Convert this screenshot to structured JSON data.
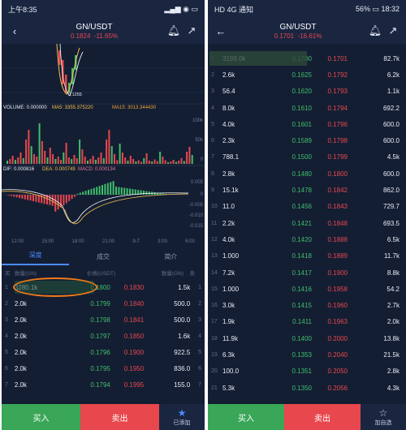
{
  "left": {
    "status_time": "上午8:35",
    "status_right": "WiFi · 电池",
    "pair": "GN/USDT",
    "price": "0.1824",
    "change": "-11.65%",
    "chart": {
      "low_label": "0.1255",
      "volume_label": "VOLUME: 0.000000",
      "ma5_label": "MA5: 3355.375220",
      "ma15_label": "MA15: 3013.344430",
      "dif_label": "DIF: 0.000816",
      "dea_label": "DEA: 0.000749",
      "macd_label": "MACD: 0.000134",
      "vol_axis": [
        "100k",
        "50k",
        "0"
      ],
      "macd_axis": [
        "0.005",
        "0",
        "-0.005",
        "-0.010",
        "-0.015"
      ],
      "time_axis": [
        "12:00",
        "15:00",
        "18:00",
        "21:00",
        "9-7",
        "3:00",
        "6:00"
      ]
    },
    "tabs": [
      "深度",
      "成交",
      "简介"
    ],
    "col_headers": {
      "left_side": "买",
      "qty": "数量(GN)",
      "price": "价格(USDT)",
      "qty2": "数量(GN)",
      "right_side": "卖"
    },
    "rows": [
      {
        "n": "1",
        "bid_qty": "3280.1k",
        "bid": "0.1800",
        "ask": "0.1830",
        "ask_qty": "1.5k",
        "n2": "1"
      },
      {
        "n": "2",
        "bid_qty": "2.0k",
        "bid": "0.1799",
        "ask": "0.1840",
        "ask_qty": "500.0",
        "n2": "2"
      },
      {
        "n": "3",
        "bid_qty": "2.0k",
        "bid": "0.1798",
        "ask": "0.1841",
        "ask_qty": "500.0",
        "n2": "3"
      },
      {
        "n": "4",
        "bid_qty": "2.0k",
        "bid": "0.1797",
        "ask": "0.1850",
        "ask_qty": "1.6k",
        "n2": "4"
      },
      {
        "n": "5",
        "bid_qty": "2.0k",
        "bid": "0.1796",
        "ask": "0.1900",
        "ask_qty": "922.5",
        "n2": "5"
      },
      {
        "n": "6",
        "bid_qty": "2.0k",
        "bid": "0.1795",
        "ask": "0.1950",
        "ask_qty": "836.0",
        "n2": "6"
      },
      {
        "n": "7",
        "bid_qty": "2.0k",
        "bid": "0.1794",
        "ask": "0.1995",
        "ask_qty": "155.0",
        "n2": "7"
      }
    ],
    "buy_label": "买入",
    "sell_label": "卖出",
    "fav_label": "已添加"
  },
  "right": {
    "status_left": "HD 4G 通知",
    "status_battery": "56%",
    "status_time": "18:32",
    "pair": "GN/USDT",
    "price": "0.1701",
    "change": "-16.61%",
    "rows": [
      {
        "n": "1",
        "bid_qty": "3199.0k",
        "bid": "0.1700",
        "ask": "0.1701",
        "ask_qty": "82.7k"
      },
      {
        "n": "2",
        "bid_qty": "2.6k",
        "bid": "0.1625",
        "ask": "0.1792",
        "ask_qty": "6.2k"
      },
      {
        "n": "3",
        "bid_qty": "56.4",
        "bid": "0.1620",
        "ask": "0.1793",
        "ask_qty": "1.1k"
      },
      {
        "n": "4",
        "bid_qty": "8.0k",
        "bid": "0.1610",
        "ask": "0.1794",
        "ask_qty": "692.2"
      },
      {
        "n": "5",
        "bid_qty": "4.0k",
        "bid": "0.1601",
        "ask": "0.1796",
        "ask_qty": "600.0"
      },
      {
        "n": "6",
        "bid_qty": "2.3k",
        "bid": "0.1589",
        "ask": "0.1798",
        "ask_qty": "600.0"
      },
      {
        "n": "7",
        "bid_qty": "788.1",
        "bid": "0.1500",
        "ask": "0.1799",
        "ask_qty": "4.5k"
      },
      {
        "n": "8",
        "bid_qty": "2.8k",
        "bid": "0.1480",
        "ask": "0.1800",
        "ask_qty": "600.0"
      },
      {
        "n": "9",
        "bid_qty": "15.1k",
        "bid": "0.1478",
        "ask": "0.1842",
        "ask_qty": "862.0"
      },
      {
        "n": "10",
        "bid_qty": "11.0",
        "bid": "0.1456",
        "ask": "0.1843",
        "ask_qty": "729.7"
      },
      {
        "n": "11",
        "bid_qty": "2.2k",
        "bid": "0.1421",
        "ask": "0.1848",
        "ask_qty": "693.5"
      },
      {
        "n": "12",
        "bid_qty": "4.0k",
        "bid": "0.1420",
        "ask": "0.1888",
        "ask_qty": "6.5k"
      },
      {
        "n": "13",
        "bid_qty": "1.000",
        "bid": "0.1418",
        "ask": "0.1889",
        "ask_qty": "11.7k"
      },
      {
        "n": "14",
        "bid_qty": "7.2k",
        "bid": "0.1417",
        "ask": "0.1900",
        "ask_qty": "8.8k"
      },
      {
        "n": "15",
        "bid_qty": "1.000",
        "bid": "0.1416",
        "ask": "0.1958",
        "ask_qty": "54.2"
      },
      {
        "n": "16",
        "bid_qty": "3.0k",
        "bid": "0.1415",
        "ask": "0.1960",
        "ask_qty": "2.7k"
      },
      {
        "n": "17",
        "bid_qty": "1.9k",
        "bid": "0.1411",
        "ask": "0.1963",
        "ask_qty": "2.0k"
      },
      {
        "n": "18",
        "bid_qty": "11.9k",
        "bid": "0.1400",
        "ask": "0.2000",
        "ask_qty": "13.8k"
      },
      {
        "n": "19",
        "bid_qty": "6.3k",
        "bid": "0.1353",
        "ask": "0.2040",
        "ask_qty": "21.5k"
      },
      {
        "n": "20",
        "bid_qty": "100.0",
        "bid": "0.1351",
        "ask": "0.2050",
        "ask_qty": "2.8k"
      },
      {
        "n": "21",
        "bid_qty": "5.3k",
        "bid": "0.1350",
        "ask": "0.2056",
        "ask_qty": "4.3k"
      }
    ],
    "buy_label": "买入",
    "sell_label": "卖出",
    "fav_label": "加自选"
  },
  "colors": {
    "bg": "#141e33",
    "up": "#3fbf6b",
    "down": "#e8474d",
    "accent": "#4a8cff",
    "highlight": "#f07a1a"
  }
}
